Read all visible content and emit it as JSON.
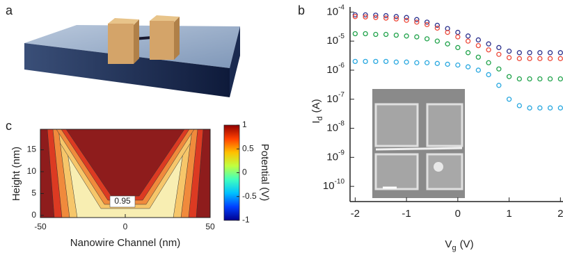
{
  "chart_data": [
    {
      "type": "image",
      "panel_label": "a"
    },
    {
      "type": "scatter",
      "panel_label": "b",
      "log_y": true,
      "marker": "circle",
      "x": [
        -2,
        -1.8,
        -1.6,
        -1.4,
        -1.2,
        -1,
        -0.8,
        -0.6,
        -0.4,
        -0.2,
        0,
        0.2,
        0.4,
        0.6,
        0.8,
        1,
        1.2,
        1.4,
        1.6,
        1.8,
        2
      ],
      "series": [
        {
          "color": "#2a2f8c",
          "values": [
            8e-05,
            8e-05,
            7.8e-05,
            7.5e-05,
            7e-05,
            6.5e-05,
            5.5e-05,
            4.5e-05,
            3.5e-05,
            2.7e-05,
            2e-05,
            1.5e-05,
            1.1e-05,
            8e-06,
            6e-06,
            4.5e-06,
            4e-06,
            4e-06,
            4e-06,
            4e-06,
            4e-06
          ]
        },
        {
          "color": "#ee4a3a",
          "values": [
            7e-05,
            6.8e-05,
            6.5e-05,
            6.2e-05,
            5.8e-05,
            5.2e-05,
            4.5e-05,
            3.7e-05,
            2.8e-05,
            2e-05,
            1.4e-05,
            1e-05,
            7e-06,
            5e-06,
            3.5e-06,
            2.7e-06,
            2.5e-06,
            2.5e-06,
            2.5e-06,
            2.5e-06,
            2.5e-06
          ]
        },
        {
          "color": "#1fa24a",
          "values": [
            1.8e-05,
            1.8e-05,
            1.7e-05,
            1.7e-05,
            1.6e-05,
            1.5e-05,
            1.4e-05,
            1.2e-05,
            1e-05,
            8e-06,
            6e-06,
            4e-06,
            2.8e-06,
            1.8e-06,
            1.1e-06,
            6e-07,
            5e-07,
            5e-07,
            5e-07,
            5e-07,
            5e-07
          ]
        },
        {
          "color": "#29a8e0",
          "values": [
            2e-06,
            2e-06,
            2e-06,
            2e-06,
            1.9e-06,
            1.9e-06,
            1.8e-06,
            1.8e-06,
            1.7e-06,
            1.6e-06,
            1.5e-06,
            1.3e-06,
            1e-06,
            7e-07,
            3e-07,
            1e-07,
            6e-08,
            5e-08,
            5e-08,
            5e-08,
            5e-08
          ]
        }
      ],
      "xlim": [
        -2.1,
        2.05
      ],
      "ylim": [
        3e-11,
        0.00015
      ],
      "xticks": [
        -2,
        -1,
        0,
        1,
        2
      ],
      "yticks": [
        {
          "value": 0.0001,
          "label": "10",
          "sup": "-4"
        },
        {
          "value": 1e-05,
          "label": "10",
          "sup": "-5"
        },
        {
          "value": 1e-06,
          "label": "10",
          "sup": "-6"
        },
        {
          "value": 1e-07,
          "label": "10",
          "sup": "-7"
        },
        {
          "value": 1e-08,
          "label": "10",
          "sup": "-8"
        },
        {
          "value": 1e-09,
          "label": "10",
          "sup": "-9"
        },
        {
          "value": 1e-10,
          "label": "10",
          "sup": "-10"
        }
      ],
      "y_label": {
        "text": "I",
        "sub": "d",
        "unit": "(A)"
      },
      "x_label": {
        "text": "V",
        "sub": "g",
        "unit": "(V)"
      }
    },
    {
      "type": "contour",
      "panel_label": "c",
      "xlim": [
        -50,
        50
      ],
      "ylim": [
        -0.5,
        19.7
      ],
      "xticks": [
        -50,
        0,
        50
      ],
      "yticks": [
        0,
        5,
        10,
        15
      ],
      "x_label": "Nanowire Channel (nm)",
      "y_label": "Height (nm)",
      "levels": [
        0.95,
        0.96,
        0.97,
        0.98,
        0.99
      ],
      "level_colors": [
        "#f8eeb2",
        "#f6c66a",
        "#f08a3c",
        "#dc3a22",
        "#8e1c1c"
      ],
      "annotation": "0.95",
      "colorbar": {
        "lim": [
          -1,
          1
        ],
        "ticks": [
          -1,
          -0.5,
          0,
          0.5,
          1
        ],
        "label": "Potential (V)",
        "colors": [
          "#00008f",
          "#0040ff",
          "#00c0ff",
          "#40ffbf",
          "#c0ff40",
          "#ffc000",
          "#ff4000",
          "#8f0000"
        ]
      }
    }
  ]
}
